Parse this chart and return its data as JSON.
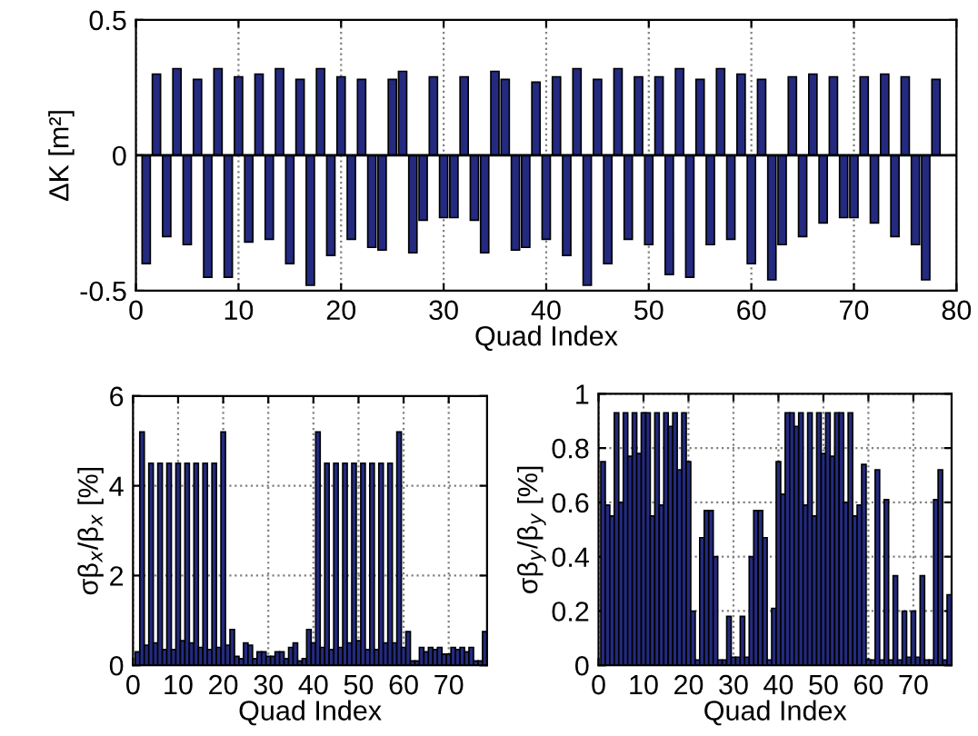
{
  "chart_data": [
    {
      "type": "bar",
      "xlabel": "Quad Index",
      "ylabel": "ΔK [m²]",
      "x": [
        1,
        2,
        3,
        4,
        5,
        6,
        7,
        8,
        9,
        10,
        11,
        12,
        13,
        14,
        15,
        16,
        17,
        18,
        19,
        20,
        21,
        22,
        23,
        24,
        25,
        26,
        27,
        28,
        29,
        30,
        31,
        32,
        33,
        34,
        35,
        36,
        37,
        38,
        39,
        40,
        41,
        42,
        43,
        44,
        45,
        46,
        47,
        48,
        49,
        50,
        51,
        52,
        53,
        54,
        55,
        56,
        57,
        58,
        59,
        60,
        61,
        62,
        63,
        64,
        65,
        66,
        67,
        68,
        69,
        70,
        71,
        72,
        73,
        74,
        75,
        76,
        77,
        78
      ],
      "series": [
        {
          "color": "#232a7f",
          "values": [
            -0.4,
            0.3,
            -0.3,
            0.32,
            -0.33,
            0.28,
            -0.45,
            0.32,
            -0.45,
            0.29,
            -0.32,
            0.3,
            -0.31,
            0.32,
            -0.4,
            0.28,
            -0.48,
            0.32,
            -0.37,
            0.29,
            -0.31,
            0.28,
            -0.34,
            -0.35,
            0.28,
            0.31,
            -0.36,
            -0.24,
            0.29,
            -0.23,
            -0.23,
            0.29,
            -0.24,
            -0.36,
            0.31,
            0.28,
            -0.35,
            -0.34,
            0.27,
            -0.31,
            0.29,
            -0.37,
            0.32,
            -0.48,
            0.28,
            -0.4,
            0.32,
            -0.31,
            0.29,
            -0.33,
            0.29,
            -0.44,
            0.32,
            -0.45,
            0.28,
            -0.33,
            0.32,
            -0.31,
            0.3,
            -0.4,
            0.28,
            -0.46,
            -0.33,
            0.29,
            -0.3,
            0.3,
            -0.25,
            0.29,
            -0.23,
            -0.23,
            0.29,
            -0.25,
            0.3,
            -0.3,
            0.29,
            -0.33,
            -0.46,
            0.28
          ]
        }
      ],
      "xlim": [
        0,
        80
      ],
      "xticks": [
        0,
        10,
        20,
        30,
        40,
        50,
        60,
        70,
        80
      ],
      "ylim": [
        -0.5,
        0.5
      ],
      "yticks": [
        -0.5,
        0,
        0.5
      ],
      "grid": "x",
      "ref_lines": [
        {
          "axis": "y",
          "value": 0,
          "color": "#000000"
        }
      ]
    },
    {
      "type": "bar",
      "xlabel": "Quad Index",
      "ylabel": "σβ$_{x}$/β$_{x}$ [%]",
      "x": [
        1,
        2,
        3,
        4,
        5,
        6,
        7,
        8,
        9,
        10,
        11,
        12,
        13,
        14,
        15,
        16,
        17,
        18,
        19,
        20,
        21,
        22,
        23,
        24,
        25,
        26,
        27,
        28,
        29,
        30,
        31,
        32,
        33,
        34,
        35,
        36,
        37,
        38,
        39,
        40,
        41,
        42,
        43,
        44,
        45,
        46,
        47,
        48,
        49,
        50,
        51,
        52,
        53,
        54,
        55,
        56,
        57,
        58,
        59,
        60,
        61,
        62,
        63,
        64,
        65,
        66,
        67,
        68,
        69,
        70,
        71,
        72,
        73,
        74,
        75,
        76,
        77,
        78
      ],
      "series": [
        {
          "color": "#232a7f",
          "values": [
            0.3,
            5.2,
            0.45,
            4.5,
            0.5,
            4.5,
            0.35,
            4.5,
            0.35,
            4.5,
            0.55,
            4.5,
            0.5,
            4.5,
            0.4,
            4.5,
            0.35,
            4.5,
            0.4,
            5.2,
            0.45,
            0.8,
            0.2,
            0.15,
            0.5,
            0.45,
            0.15,
            0.3,
            0.3,
            0.2,
            0.2,
            0.3,
            0.3,
            0.15,
            0.4,
            0.5,
            0.1,
            0.15,
            0.8,
            0.5,
            5.2,
            0.4,
            4.5,
            0.35,
            4.5,
            0.4,
            4.5,
            0.5,
            4.5,
            0.55,
            4.5,
            0.35,
            4.5,
            0.35,
            4.5,
            0.5,
            4.5,
            0.5,
            5.2,
            0.4,
            0.75,
            0.1,
            0.1,
            0.4,
            0.3,
            0.4,
            0.35,
            0.4,
            0.25,
            0.25,
            0.4,
            0.35,
            0.4,
            0.3,
            0.4,
            0.1,
            0.1,
            0.75
          ]
        }
      ],
      "xlim": [
        0,
        78.5
      ],
      "xticks": [
        0,
        10,
        20,
        30,
        40,
        50,
        60,
        70
      ],
      "ylim": [
        0,
        6
      ],
      "yticks": [
        0,
        2,
        4,
        6
      ],
      "grid": true
    },
    {
      "type": "bar",
      "xlabel": "Quad Index",
      "ylabel": "σβ$_{y}$/β$_{y}$ [%]",
      "x": [
        1,
        2,
        3,
        4,
        5,
        6,
        7,
        8,
        9,
        10,
        11,
        12,
        13,
        14,
        15,
        16,
        17,
        18,
        19,
        20,
        21,
        22,
        23,
        24,
        25,
        26,
        27,
        28,
        29,
        30,
        31,
        32,
        33,
        34,
        35,
        36,
        37,
        38,
        39,
        40,
        41,
        42,
        43,
        44,
        45,
        46,
        47,
        48,
        49,
        50,
        51,
        52,
        53,
        54,
        55,
        56,
        57,
        58,
        59,
        60,
        61,
        62,
        63,
        64,
        65,
        66,
        67,
        68,
        69,
        70,
        71,
        72,
        73,
        74,
        75,
        76,
        77,
        78
      ],
      "series": [
        {
          "color": "#232a7f",
          "values": [
            0.75,
            0.59,
            0.55,
            0.93,
            0.6,
            0.93,
            0.77,
            0.93,
            0.78,
            0.93,
            0.93,
            0.55,
            0.93,
            0.59,
            0.93,
            0.88,
            0.93,
            0.72,
            0.93,
            0.75,
            0.2,
            0.02,
            0.47,
            0.57,
            0.57,
            0.4,
            0.02,
            0.02,
            0.18,
            0.03,
            0.03,
            0.18,
            0.03,
            0.4,
            0.57,
            0.57,
            0.47,
            0.02,
            0.21,
            0.75,
            0.63,
            0.93,
            0.93,
            0.88,
            0.93,
            0.59,
            0.93,
            0.55,
            0.93,
            0.78,
            0.93,
            0.77,
            0.93,
            0.93,
            0.6,
            0.93,
            0.55,
            0.59,
            0.74,
            0.02,
            0.02,
            0.72,
            0.02,
            0.61,
            0.02,
            0.33,
            0.02,
            0.2,
            0.03,
            0.2,
            0.03,
            0.33,
            0.02,
            0.02,
            0.61,
            0.72,
            0.02,
            0.26
          ]
        }
      ],
      "xlim": [
        0,
        78.5
      ],
      "xticks": [
        0,
        10,
        20,
        30,
        40,
        50,
        60,
        70
      ],
      "ylim": [
        0,
        1
      ],
      "yticks": [
        0,
        0.2,
        0.4,
        0.6,
        0.8,
        1
      ],
      "grid": true
    }
  ]
}
